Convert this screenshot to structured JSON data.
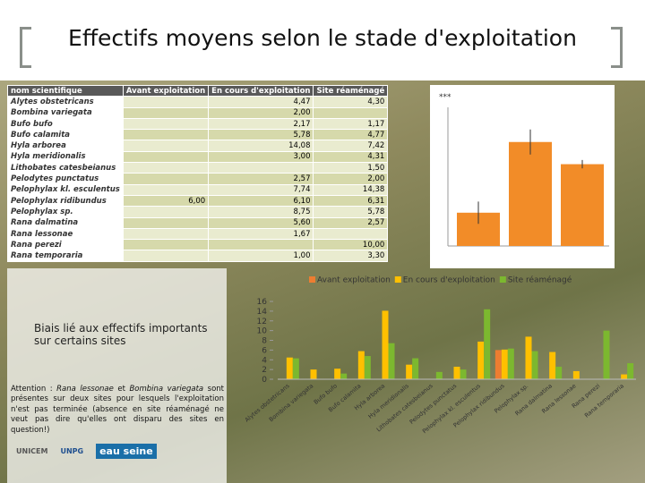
{
  "title": "Effectifs moyens selon le stade d'exploitation",
  "table": {
    "header": [
      "nom scientifique",
      "Avant exploitation",
      "En cours d'exploitation",
      "Site réaménagé"
    ],
    "rows": [
      [
        "Alytes obstetricans",
        null,
        "4,47",
        "4,30"
      ],
      [
        "Bombina variegata",
        null,
        "2,00",
        null
      ],
      [
        "Bufo bufo",
        null,
        "2,17",
        "1,17"
      ],
      [
        "Bufo calamita",
        null,
        "5,78",
        "4,77"
      ],
      [
        "Hyla arborea",
        null,
        "14,08",
        "7,42"
      ],
      [
        "Hyla meridionalis",
        null,
        "3,00",
        "4,31"
      ],
      [
        "Lithobates catesbeianus",
        null,
        null,
        "1,50"
      ],
      [
        "Pelodytes punctatus",
        null,
        "2,57",
        "2,00"
      ],
      [
        "Pelophylax kl. esculentus",
        null,
        "7,74",
        "14,38"
      ],
      [
        "Pelophylax ridibundus",
        "6,00",
        "6,10",
        "6,31"
      ],
      [
        "Pelophylax sp.",
        null,
        "8,75",
        "5,78"
      ],
      [
        "Rana dalmatina",
        null,
        "5,60",
        "2,57"
      ],
      [
        "Rana lessonae",
        null,
        "1,67",
        null
      ],
      [
        "Rana perezi",
        null,
        null,
        "10,00"
      ],
      [
        "Rana temporaria",
        null,
        "1,00",
        "3,30"
      ]
    ]
  },
  "notes": {
    "bias": "Biais lié aux effectifs importants sur certains sites",
    "warning": [
      "Attention : ",
      "Rana lessonae",
      " et ",
      "Bombina variegata",
      " sont présentes sur deux sites pour lesquels l'exploitation n'est pas terminée (absence en site réaménagé ne veut pas dire qu'elles ont disparu des sites en question!)"
    ]
  },
  "logos": [
    "UNICEM",
    "UNPG",
    "eau",
    "seine"
  ],
  "chart_data": [
    {
      "type": "bar",
      "categories": [
        "Alytes obstetricans",
        "Bombina variegata",
        "Bufo bufo",
        "Bufo calamita",
        "Hyla arborea",
        "Hyla meridionalis",
        "Lithobates catesbeianus",
        "Pelodytes punctatus",
        "Pelophylax kl. esculentus",
        "Pelophylax ridibundus",
        "Pelophylax sp.",
        "Rana dalmatina",
        "Rana lessonae",
        "Rana perezi",
        "Rana temporaria"
      ],
      "series": [
        {
          "name": "Avant exploitation",
          "color": "#ed7d31",
          "values": [
            null,
            null,
            null,
            null,
            null,
            null,
            null,
            null,
            null,
            6.0,
            null,
            null,
            null,
            null,
            null
          ]
        },
        {
          "name": "En cours d'exploitation",
          "color": "#ffc000",
          "values": [
            4.47,
            2.0,
            2.17,
            5.78,
            14.08,
            3.0,
            null,
            2.57,
            7.74,
            6.1,
            8.75,
            5.6,
            1.67,
            null,
            1.0
          ]
        },
        {
          "name": "Site réaménagé",
          "color": "#7cb82f",
          "values": [
            4.3,
            null,
            1.17,
            4.77,
            7.42,
            4.31,
            1.5,
            2.0,
            14.38,
            6.31,
            5.78,
            2.57,
            null,
            10.0,
            3.3
          ]
        }
      ],
      "ylim": [
        0,
        16
      ],
      "yticks": [
        0,
        2,
        4,
        6,
        8,
        10,
        12,
        14,
        16
      ],
      "legend": "top",
      "grid": false
    },
    {
      "type": "bar",
      "annotation": "***",
      "color": "#f28c28",
      "values": [
        2.4,
        7.5,
        5.9
      ],
      "errors": [
        0.8,
        0.9,
        0.3
      ],
      "ylim": [
        0,
        10
      ]
    }
  ]
}
